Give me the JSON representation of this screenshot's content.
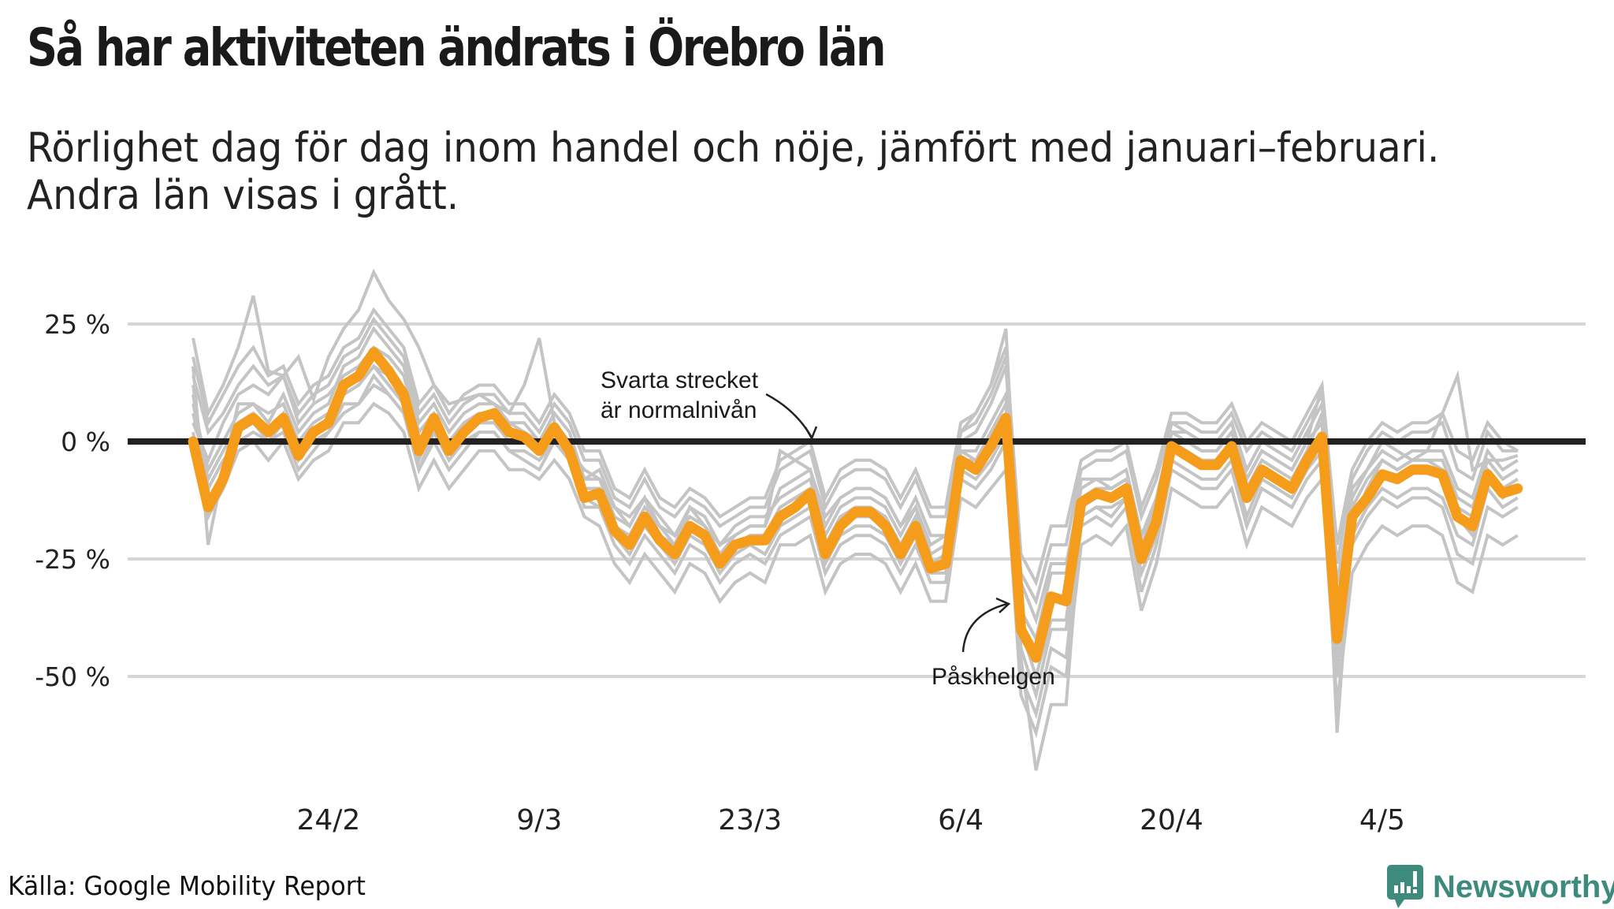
{
  "header": {
    "title": "Så har aktiviteten ändrats i Örebro län",
    "subtitle_line1": "Rörlighet dag för dag inom handel och nöje, jämfört med januari–februari.",
    "subtitle_line2": "Andra län visas i grått."
  },
  "footer": {
    "source": "Källa: Google Mobility Report",
    "brand": "Newsworthy",
    "brand_icon": "chart-speech-bubble-icon"
  },
  "colors": {
    "highlight": "#f59c1a",
    "others": "#c4c4c4",
    "baseline": "#222222",
    "grid": "#d6d6d6",
    "brand": "#3d8b7d"
  },
  "chart_data": {
    "type": "line",
    "title": "Så har aktiviteten ändrats i Örebro län",
    "xlabel": "",
    "ylabel": "",
    "ylim": [
      -75,
      37
    ],
    "yticks": [
      25,
      0,
      -25,
      -50
    ],
    "ytick_labels": [
      "25 %",
      "0 %",
      "-25 %",
      "-50 %"
    ],
    "x_start": "15/2",
    "x_step_days": 1,
    "xtick_labels": [
      "24/2",
      "9/3",
      "23/3",
      "6/4",
      "20/4",
      "4/5"
    ],
    "xtick_index": [
      9,
      23,
      37,
      51,
      65,
      79
    ],
    "grid": true,
    "annotations": [
      {
        "text_lines": [
          "Svarta strecket",
          "är normalnivån"
        ],
        "target_index": 31,
        "target_value": 0
      },
      {
        "text_lines": [
          "Påskhelgen"
        ],
        "target_index": 55,
        "target_value": -33
      }
    ],
    "highlight_series": {
      "name": "Örebro län",
      "values": [
        0,
        -14,
        -8,
        3,
        5,
        2,
        5,
        -3,
        2,
        4,
        12,
        14,
        19,
        15,
        10,
        -2,
        5,
        -2,
        2,
        5,
        6,
        2,
        1,
        -2,
        3,
        -2,
        -12,
        -11,
        -19,
        -22,
        -16,
        -21,
        -24,
        -18,
        -20,
        -26,
        -22,
        -21,
        -21,
        -16,
        -14,
        -11,
        -24,
        -18,
        -15,
        -15,
        -18,
        -24,
        -18,
        -27,
        -26,
        -4,
        -6,
        -1,
        5,
        -40,
        -46,
        -33,
        -34,
        -13,
        -11,
        -12,
        -10,
        -25,
        -17,
        -1,
        -3,
        -5,
        -5,
        -1,
        -12,
        -6,
        -8,
        -10,
        -4,
        1,
        -42,
        -16,
        -12,
        -7,
        -8,
        -6,
        -6,
        -7,
        -16,
        -18,
        -7,
        -11,
        -10
      ]
    },
    "other_series": [
      {
        "name": "Andra län 1",
        "values": [
          22,
          6,
          12,
          20,
          31,
          15,
          14,
          18,
          9,
          18,
          24,
          28,
          36,
          30,
          26,
          20,
          12,
          8,
          9,
          10,
          8,
          6,
          12,
          22,
          4,
          -2,
          -6,
          -8,
          -14,
          -18,
          -12,
          -20,
          -22,
          -14,
          -18,
          -24,
          -20,
          -18,
          -18,
          -2,
          -4,
          -6,
          -16,
          -12,
          -10,
          -10,
          -12,
          -18,
          -14,
          -22,
          -20,
          2,
          6,
          12,
          24,
          -36,
          -42,
          -28,
          -28,
          -8,
          -8,
          -10,
          -8,
          -20,
          -14,
          4,
          2,
          0,
          0,
          4,
          -8,
          -2,
          -4,
          -6,
          0,
          12,
          -36,
          -10,
          -6,
          0,
          -2,
          -4,
          -2,
          6,
          14,
          -6,
          -4,
          -4,
          -3
        ]
      },
      {
        "name": "Andra län 2",
        "values": [
          16,
          -22,
          -6,
          8,
          8,
          4,
          10,
          2,
          6,
          8,
          16,
          18,
          24,
          20,
          16,
          4,
          8,
          2,
          6,
          8,
          8,
          4,
          4,
          0,
          6,
          2,
          -8,
          -6,
          -14,
          -16,
          -12,
          -16,
          -20,
          -14,
          -16,
          -22,
          -18,
          -16,
          -16,
          -12,
          -10,
          -8,
          -20,
          -14,
          -12,
          -12,
          -14,
          -20,
          -14,
          -24,
          -22,
          -2,
          -2,
          4,
          10,
          -46,
          -70,
          -56,
          -56,
          -16,
          -14,
          -14,
          -12,
          -28,
          -20,
          2,
          0,
          -2,
          -2,
          2,
          -10,
          -4,
          -6,
          -8,
          -2,
          6,
          -62,
          -18,
          -10,
          -4,
          -6,
          -4,
          -4,
          -4,
          -12,
          -14,
          -4,
          -8,
          -6
        ]
      },
      {
        "name": "Andra län 3",
        "values": [
          10,
          -10,
          -4,
          0,
          2,
          0,
          2,
          -6,
          -2,
          2,
          8,
          8,
          12,
          10,
          6,
          -6,
          2,
          -4,
          0,
          2,
          2,
          -2,
          -4,
          -6,
          0,
          -4,
          -14,
          -14,
          -22,
          -26,
          -20,
          -24,
          -28,
          -22,
          -24,
          -30,
          -26,
          -24,
          -26,
          -20,
          -18,
          -16,
          -28,
          -22,
          -20,
          -20,
          -22,
          -28,
          -22,
          -30,
          -30,
          -8,
          -10,
          -6,
          0,
          -50,
          -58,
          -44,
          -46,
          -18,
          -16,
          -18,
          -14,
          -32,
          -22,
          -6,
          -8,
          -10,
          -10,
          -6,
          -18,
          -10,
          -12,
          -14,
          -8,
          -4,
          -50,
          -22,
          -16,
          -12,
          -14,
          -12,
          -12,
          -14,
          -24,
          -26,
          -14,
          -16,
          -14
        ]
      },
      {
        "name": "Andra län 4",
        "values": [
          6,
          -8,
          -2,
          4,
          6,
          2,
          6,
          -2,
          2,
          4,
          10,
          12,
          16,
          12,
          8,
          -4,
          4,
          -2,
          2,
          4,
          4,
          0,
          0,
          -2,
          2,
          -2,
          -10,
          -10,
          -18,
          -20,
          -16,
          -20,
          -24,
          -18,
          -20,
          -26,
          -22,
          -20,
          -20,
          -14,
          -12,
          -10,
          -22,
          -16,
          -14,
          -14,
          -16,
          -22,
          -16,
          -26,
          -24,
          -4,
          -4,
          0,
          6,
          -40,
          -50,
          -38,
          -38,
          -14,
          -12,
          -12,
          -10,
          -24,
          -16,
          0,
          -2,
          -4,
          -4,
          0,
          -10,
          -6,
          -8,
          -10,
          -4,
          2,
          -46,
          -16,
          -12,
          -8,
          -8,
          -6,
          -6,
          -8,
          -16,
          -20,
          -8,
          -12,
          -10
        ]
      },
      {
        "name": "Andra län 5",
        "values": [
          4,
          -4,
          4,
          10,
          12,
          10,
          14,
          4,
          8,
          10,
          14,
          16,
          20,
          18,
          14,
          2,
          6,
          0,
          4,
          6,
          6,
          4,
          2,
          0,
          4,
          0,
          -8,
          -8,
          -16,
          -18,
          -12,
          -18,
          -20,
          -16,
          -18,
          -22,
          -20,
          -18,
          -18,
          -10,
          -8,
          -6,
          -18,
          -12,
          -10,
          -10,
          -12,
          -18,
          -12,
          -20,
          -20,
          0,
          2,
          8,
          16,
          -30,
          -38,
          -26,
          -26,
          -10,
          -8,
          -8,
          -6,
          -20,
          -12,
          2,
          2,
          0,
          0,
          4,
          -6,
          0,
          -2,
          -4,
          2,
          8,
          -30,
          -12,
          -6,
          -2,
          -4,
          -2,
          -2,
          -2,
          -10,
          -12,
          -2,
          -6,
          -4
        ]
      },
      {
        "name": "Andra län 6",
        "values": [
          12,
          -12,
          -8,
          2,
          4,
          0,
          4,
          -4,
          0,
          2,
          6,
          8,
          14,
          10,
          6,
          -6,
          0,
          -6,
          -2,
          2,
          2,
          -2,
          -2,
          -4,
          0,
          -4,
          -12,
          -14,
          -20,
          -24,
          -18,
          -22,
          -26,
          -20,
          -22,
          -28,
          -24,
          -22,
          -24,
          -18,
          -16,
          -14,
          -26,
          -20,
          -18,
          -18,
          -20,
          -26,
          -20,
          -28,
          -28,
          -6,
          -8,
          -4,
          2,
          -44,
          -54,
          -40,
          -40,
          -16,
          -14,
          -16,
          -12,
          -28,
          -20,
          -4,
          -6,
          -8,
          -8,
          -4,
          -16,
          -8,
          -10,
          -12,
          -6,
          -2,
          -40,
          -20,
          -14,
          -10,
          -12,
          -10,
          -10,
          -12,
          -20,
          -22,
          -10,
          -14,
          -12
        ]
      },
      {
        "name": "Andra län 7",
        "values": [
          8,
          -6,
          0,
          6,
          8,
          6,
          8,
          0,
          4,
          6,
          10,
          12,
          16,
          14,
          10,
          0,
          4,
          -2,
          2,
          4,
          4,
          2,
          0,
          -2,
          2,
          -2,
          -10,
          -10,
          -18,
          -20,
          -14,
          -18,
          -22,
          -18,
          -20,
          -24,
          -22,
          -20,
          -20,
          -14,
          -12,
          -12,
          -24,
          -18,
          -16,
          -16,
          -18,
          -24,
          -18,
          -26,
          -26,
          -2,
          -4,
          2,
          8,
          -38,
          -46,
          -34,
          -34,
          -12,
          -10,
          -10,
          -8,
          -22,
          -14,
          0,
          0,
          -2,
          -2,
          2,
          -8,
          -2,
          -4,
          -6,
          0,
          4,
          -40,
          -14,
          -8,
          -4,
          -6,
          -4,
          -4,
          -6,
          -14,
          -16,
          -6,
          -10,
          -8
        ]
      },
      {
        "name": "Andra län 8",
        "values": [
          14,
          2,
          6,
          12,
          16,
          12,
          14,
          6,
          10,
          12,
          18,
          20,
          26,
          22,
          18,
          6,
          10,
          4,
          8,
          10,
          10,
          6,
          6,
          2,
          8,
          4,
          -4,
          -4,
          -12,
          -14,
          -8,
          -14,
          -16,
          -12,
          -14,
          -18,
          -16,
          -14,
          -14,
          -6,
          -4,
          -2,
          -14,
          -8,
          -6,
          -6,
          -8,
          -14,
          -8,
          -16,
          -16,
          2,
          4,
          10,
          18,
          -28,
          -34,
          -22,
          -22,
          -6,
          -4,
          -4,
          -2,
          -16,
          -8,
          4,
          4,
          2,
          2,
          6,
          -2,
          2,
          0,
          -2,
          4,
          10,
          -26,
          -8,
          -2,
          2,
          0,
          2,
          2,
          4,
          -6,
          -8,
          2,
          -2,
          -2
        ]
      },
      {
        "name": "Andra län 9",
        "values": [
          2,
          -16,
          -10,
          -2,
          0,
          -4,
          0,
          -8,
          -4,
          -2,
          4,
          4,
          8,
          6,
          2,
          -10,
          -4,
          -10,
          -6,
          -2,
          -2,
          -6,
          -6,
          -8,
          -4,
          -8,
          -16,
          -18,
          -26,
          -30,
          -24,
          -28,
          -32,
          -26,
          -28,
          -34,
          -30,
          -28,
          -30,
          -22,
          -22,
          -20,
          -32,
          -26,
          -24,
          -24,
          -26,
          -32,
          -26,
          -34,
          -34,
          -12,
          -14,
          -10,
          -6,
          -54,
          -62,
          -48,
          -50,
          -22,
          -20,
          -22,
          -18,
          -36,
          -26,
          -10,
          -12,
          -14,
          -14,
          -10,
          -22,
          -14,
          -16,
          -18,
          -12,
          -8,
          -56,
          -28,
          -22,
          -18,
          -20,
          -18,
          -18,
          -20,
          -30,
          -32,
          -20,
          -22,
          -20
        ]
      },
      {
        "name": "Andra län 10",
        "values": [
          18,
          4,
          10,
          16,
          20,
          14,
          16,
          8,
          12,
          14,
          20,
          22,
          28,
          24,
          20,
          8,
          12,
          6,
          10,
          12,
          12,
          8,
          8,
          4,
          10,
          6,
          -2,
          -2,
          -10,
          -12,
          -6,
          -12,
          -14,
          -10,
          -12,
          -16,
          -14,
          -12,
          -12,
          -4,
          -2,
          0,
          -12,
          -6,
          -4,
          -4,
          -6,
          -12,
          -6,
          -14,
          -14,
          4,
          6,
          12,
          20,
          -24,
          -30,
          -18,
          -18,
          -4,
          -2,
          -2,
          0,
          -14,
          -6,
          6,
          6,
          4,
          4,
          8,
          0,
          4,
          2,
          0,
          6,
          12,
          -22,
          -6,
          0,
          4,
          2,
          4,
          4,
          6,
          -2,
          -4,
          4,
          0,
          -2
        ]
      }
    ]
  }
}
